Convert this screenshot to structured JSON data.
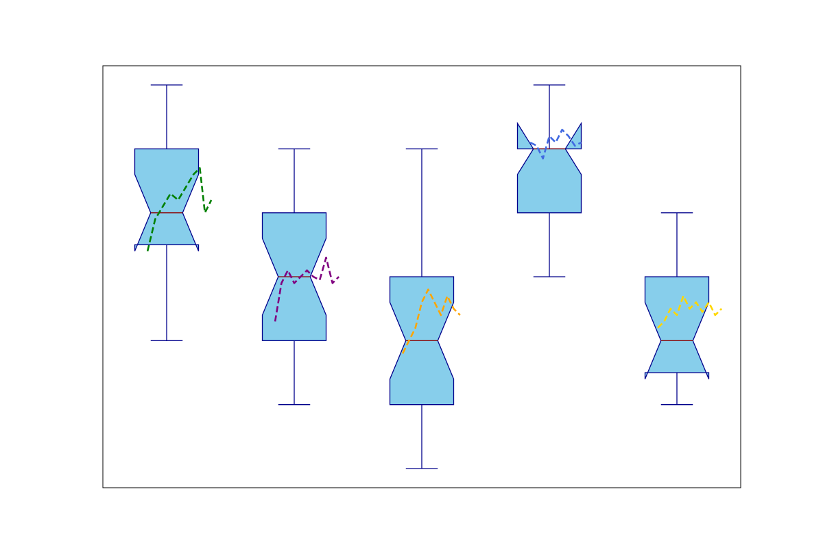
{
  "chart_data": {
    "type": "boxplot",
    "notched": true,
    "title": "",
    "xlabel": "",
    "ylabel": "",
    "grid": false,
    "xlim": [
      0.5,
      5.5
    ],
    "ylim": [
      -0.3,
      6.3
    ],
    "colors": {
      "box_fill": "#87ceeb",
      "box_edge": "#00008b",
      "median": "#8b0000",
      "frame": "#000000"
    },
    "boxes": [
      {
        "position": 1,
        "whislo": 2,
        "q1": 3.5,
        "med": 4,
        "q3": 5,
        "whishi": 6,
        "notch_low": 3.4,
        "notch_high": 4.6,
        "overlay": {
          "color": "#008000",
          "points": [
            [
              0.85,
              3.4
            ],
            [
              0.91,
              3.9
            ],
            [
              0.97,
              4.1
            ],
            [
              1.03,
              4.3
            ],
            [
              1.09,
              4.2
            ],
            [
              1.15,
              4.4
            ],
            [
              1.21,
              4.6
            ],
            [
              1.26,
              4.7
            ],
            [
              1.3,
              4.0
            ],
            [
              1.35,
              4.2
            ]
          ]
        }
      },
      {
        "position": 2,
        "whislo": 1,
        "q1": 2,
        "med": 3,
        "q3": 4,
        "whishi": 5,
        "notch_low": 2.4,
        "notch_high": 3.6,
        "overlay": {
          "color": "#800080",
          "points": [
            [
              1.85,
              2.3
            ],
            [
              1.9,
              2.9
            ],
            [
              1.95,
              3.1
            ],
            [
              2.0,
              2.9
            ],
            [
              2.05,
              3.0
            ],
            [
              2.1,
              3.1
            ],
            [
              2.15,
              3.0
            ],
            [
              2.2,
              2.95
            ],
            [
              2.25,
              3.3
            ],
            [
              2.3,
              2.9
            ],
            [
              2.35,
              3.0
            ]
          ]
        }
      },
      {
        "position": 3,
        "whislo": 0,
        "q1": 1,
        "med": 2,
        "q3": 3,
        "whishi": 5,
        "notch_low": 1.4,
        "notch_high": 2.6,
        "overlay": {
          "color": "#ffa500",
          "points": [
            [
              2.85,
              1.8
            ],
            [
              2.9,
              2.0
            ],
            [
              2.95,
              2.2
            ],
            [
              3.0,
              2.6
            ],
            [
              3.05,
              2.8
            ],
            [
              3.1,
              2.6
            ],
            [
              3.15,
              2.4
            ],
            [
              3.2,
              2.7
            ],
            [
              3.25,
              2.5
            ],
            [
              3.3,
              2.4
            ]
          ]
        }
      },
      {
        "position": 4,
        "whislo": 3,
        "q1": 4,
        "med": 5,
        "q3": 5,
        "whishi": 6,
        "notch_low": 4.6,
        "notch_high": 5.4,
        "overlay": {
          "color": "#4169e1",
          "points": [
            [
              3.85,
              5.1
            ],
            [
              3.9,
              5.05
            ],
            [
              3.95,
              4.85
            ],
            [
              4.0,
              5.2
            ],
            [
              4.05,
              5.1
            ],
            [
              4.1,
              5.3
            ],
            [
              4.15,
              5.2
            ],
            [
              4.2,
              5.05
            ],
            [
              4.25,
              5.1
            ]
          ]
        }
      },
      {
        "position": 5,
        "whislo": 1,
        "q1": 1.5,
        "med": 2,
        "q3": 3,
        "whishi": 4,
        "notch_low": 1.4,
        "notch_high": 2.6,
        "overlay": {
          "color": "#ffd700",
          "points": [
            [
              4.85,
              2.2
            ],
            [
              4.9,
              2.3
            ],
            [
              4.95,
              2.5
            ],
            [
              5.0,
              2.4
            ],
            [
              5.05,
              2.7
            ],
            [
              5.1,
              2.5
            ],
            [
              5.15,
              2.6
            ],
            [
              5.2,
              2.45
            ],
            [
              5.25,
              2.6
            ],
            [
              5.3,
              2.4
            ],
            [
              5.35,
              2.5
            ]
          ]
        }
      }
    ]
  }
}
